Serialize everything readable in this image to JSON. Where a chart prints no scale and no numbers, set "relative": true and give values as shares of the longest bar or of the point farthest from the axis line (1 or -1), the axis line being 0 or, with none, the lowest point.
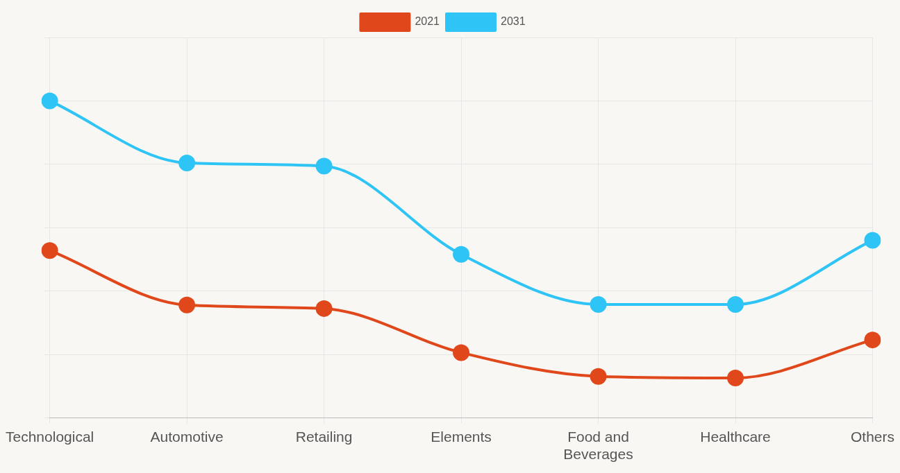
{
  "chart_data": {
    "type": "line",
    "relative": true,
    "categories": [
      "Technological",
      "Automotive",
      "Retailing",
      "Elements",
      "Food and Beverages",
      "Healthcare",
      "Others"
    ],
    "series": [
      {
        "name": "2021",
        "color": "#e0481c",
        "values": [
          0.528,
          0.356,
          0.345,
          0.206,
          0.131,
          0.126,
          0.246
        ]
      },
      {
        "name": "2031",
        "color": "#2ec4f5",
        "values": [
          1,
          0.804,
          0.794,
          0.516,
          0.358,
          0.358,
          0.56
        ]
      }
    ],
    "grid": true,
    "legend": "top",
    "marker": "circle",
    "line_style": "solid"
  }
}
